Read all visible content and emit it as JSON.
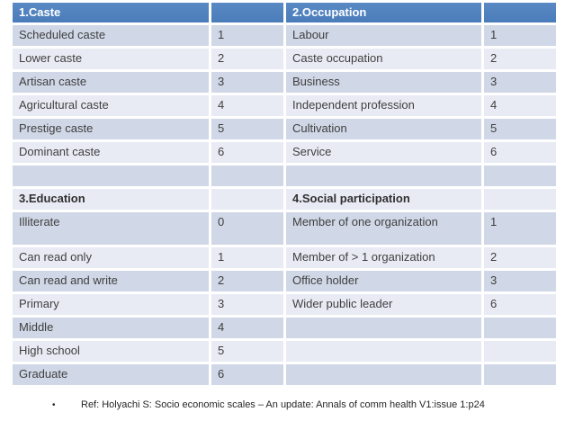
{
  "colors": {
    "header_bg": "#4e80bc",
    "header_text": "#ffffff",
    "row_dark": "#d0d7e6",
    "row_light": "#e9ebf4",
    "cell_text": "#3f3f3f",
    "page_bg": "#ffffff"
  },
  "table": {
    "rows": [
      {
        "type": "header",
        "band": "",
        "tall": false,
        "cells": [
          "1.Caste",
          "",
          "2.Occupation",
          ""
        ]
      },
      {
        "type": "data",
        "band": "dark",
        "tall": false,
        "cells": [
          "Scheduled caste",
          "1",
          "Labour",
          "1"
        ]
      },
      {
        "type": "data",
        "band": "light",
        "tall": false,
        "cells": [
          "Lower caste",
          "2",
          "Caste occupation",
          "2"
        ]
      },
      {
        "type": "data",
        "band": "dark",
        "tall": false,
        "cells": [
          "Artisan caste",
          "3",
          "Business",
          "3"
        ]
      },
      {
        "type": "data",
        "band": "light",
        "tall": false,
        "cells": [
          "Agricultural caste",
          "4",
          "Independent profession",
          "4"
        ]
      },
      {
        "type": "data",
        "band": "dark",
        "tall": false,
        "cells": [
          "Prestige caste",
          "5",
          "Cultivation",
          "5"
        ]
      },
      {
        "type": "data",
        "band": "light",
        "tall": false,
        "cells": [
          "Dominant caste",
          "6",
          "Service",
          "6"
        ]
      },
      {
        "type": "data",
        "band": "dark",
        "tall": false,
        "cells": [
          "",
          "",
          "",
          ""
        ]
      },
      {
        "type": "subheader",
        "band": "light",
        "tall": false,
        "cells": [
          "3.Education",
          "",
          "4.Social participation",
          ""
        ]
      },
      {
        "type": "data",
        "band": "dark",
        "tall": true,
        "cells": [
          "Illiterate",
          "0",
          "Member of one organization",
          "1"
        ]
      },
      {
        "type": "data",
        "band": "light",
        "tall": false,
        "cells": [
          "Can read only",
          "1",
          "Member of > 1 organization",
          "2"
        ]
      },
      {
        "type": "data",
        "band": "dark",
        "tall": false,
        "cells": [
          "Can read and write",
          "2",
          "Office holder",
          "3"
        ]
      },
      {
        "type": "data",
        "band": "light",
        "tall": false,
        "cells": [
          "Primary",
          "3",
          "Wider public leader",
          "6"
        ]
      },
      {
        "type": "data",
        "band": "dark",
        "tall": false,
        "cells": [
          "Middle",
          "4",
          "",
          ""
        ]
      },
      {
        "type": "data",
        "band": "light",
        "tall": false,
        "cells": [
          "High school",
          "5",
          "",
          ""
        ]
      },
      {
        "type": "data",
        "band": "dark",
        "tall": false,
        "cells": [
          "Graduate",
          "6",
          "",
          ""
        ]
      }
    ]
  },
  "footer": {
    "bullet": "•",
    "text": "Ref: Holyachi S: Socio economic scales – An update: Annals of comm health V1:issue 1:p24"
  }
}
